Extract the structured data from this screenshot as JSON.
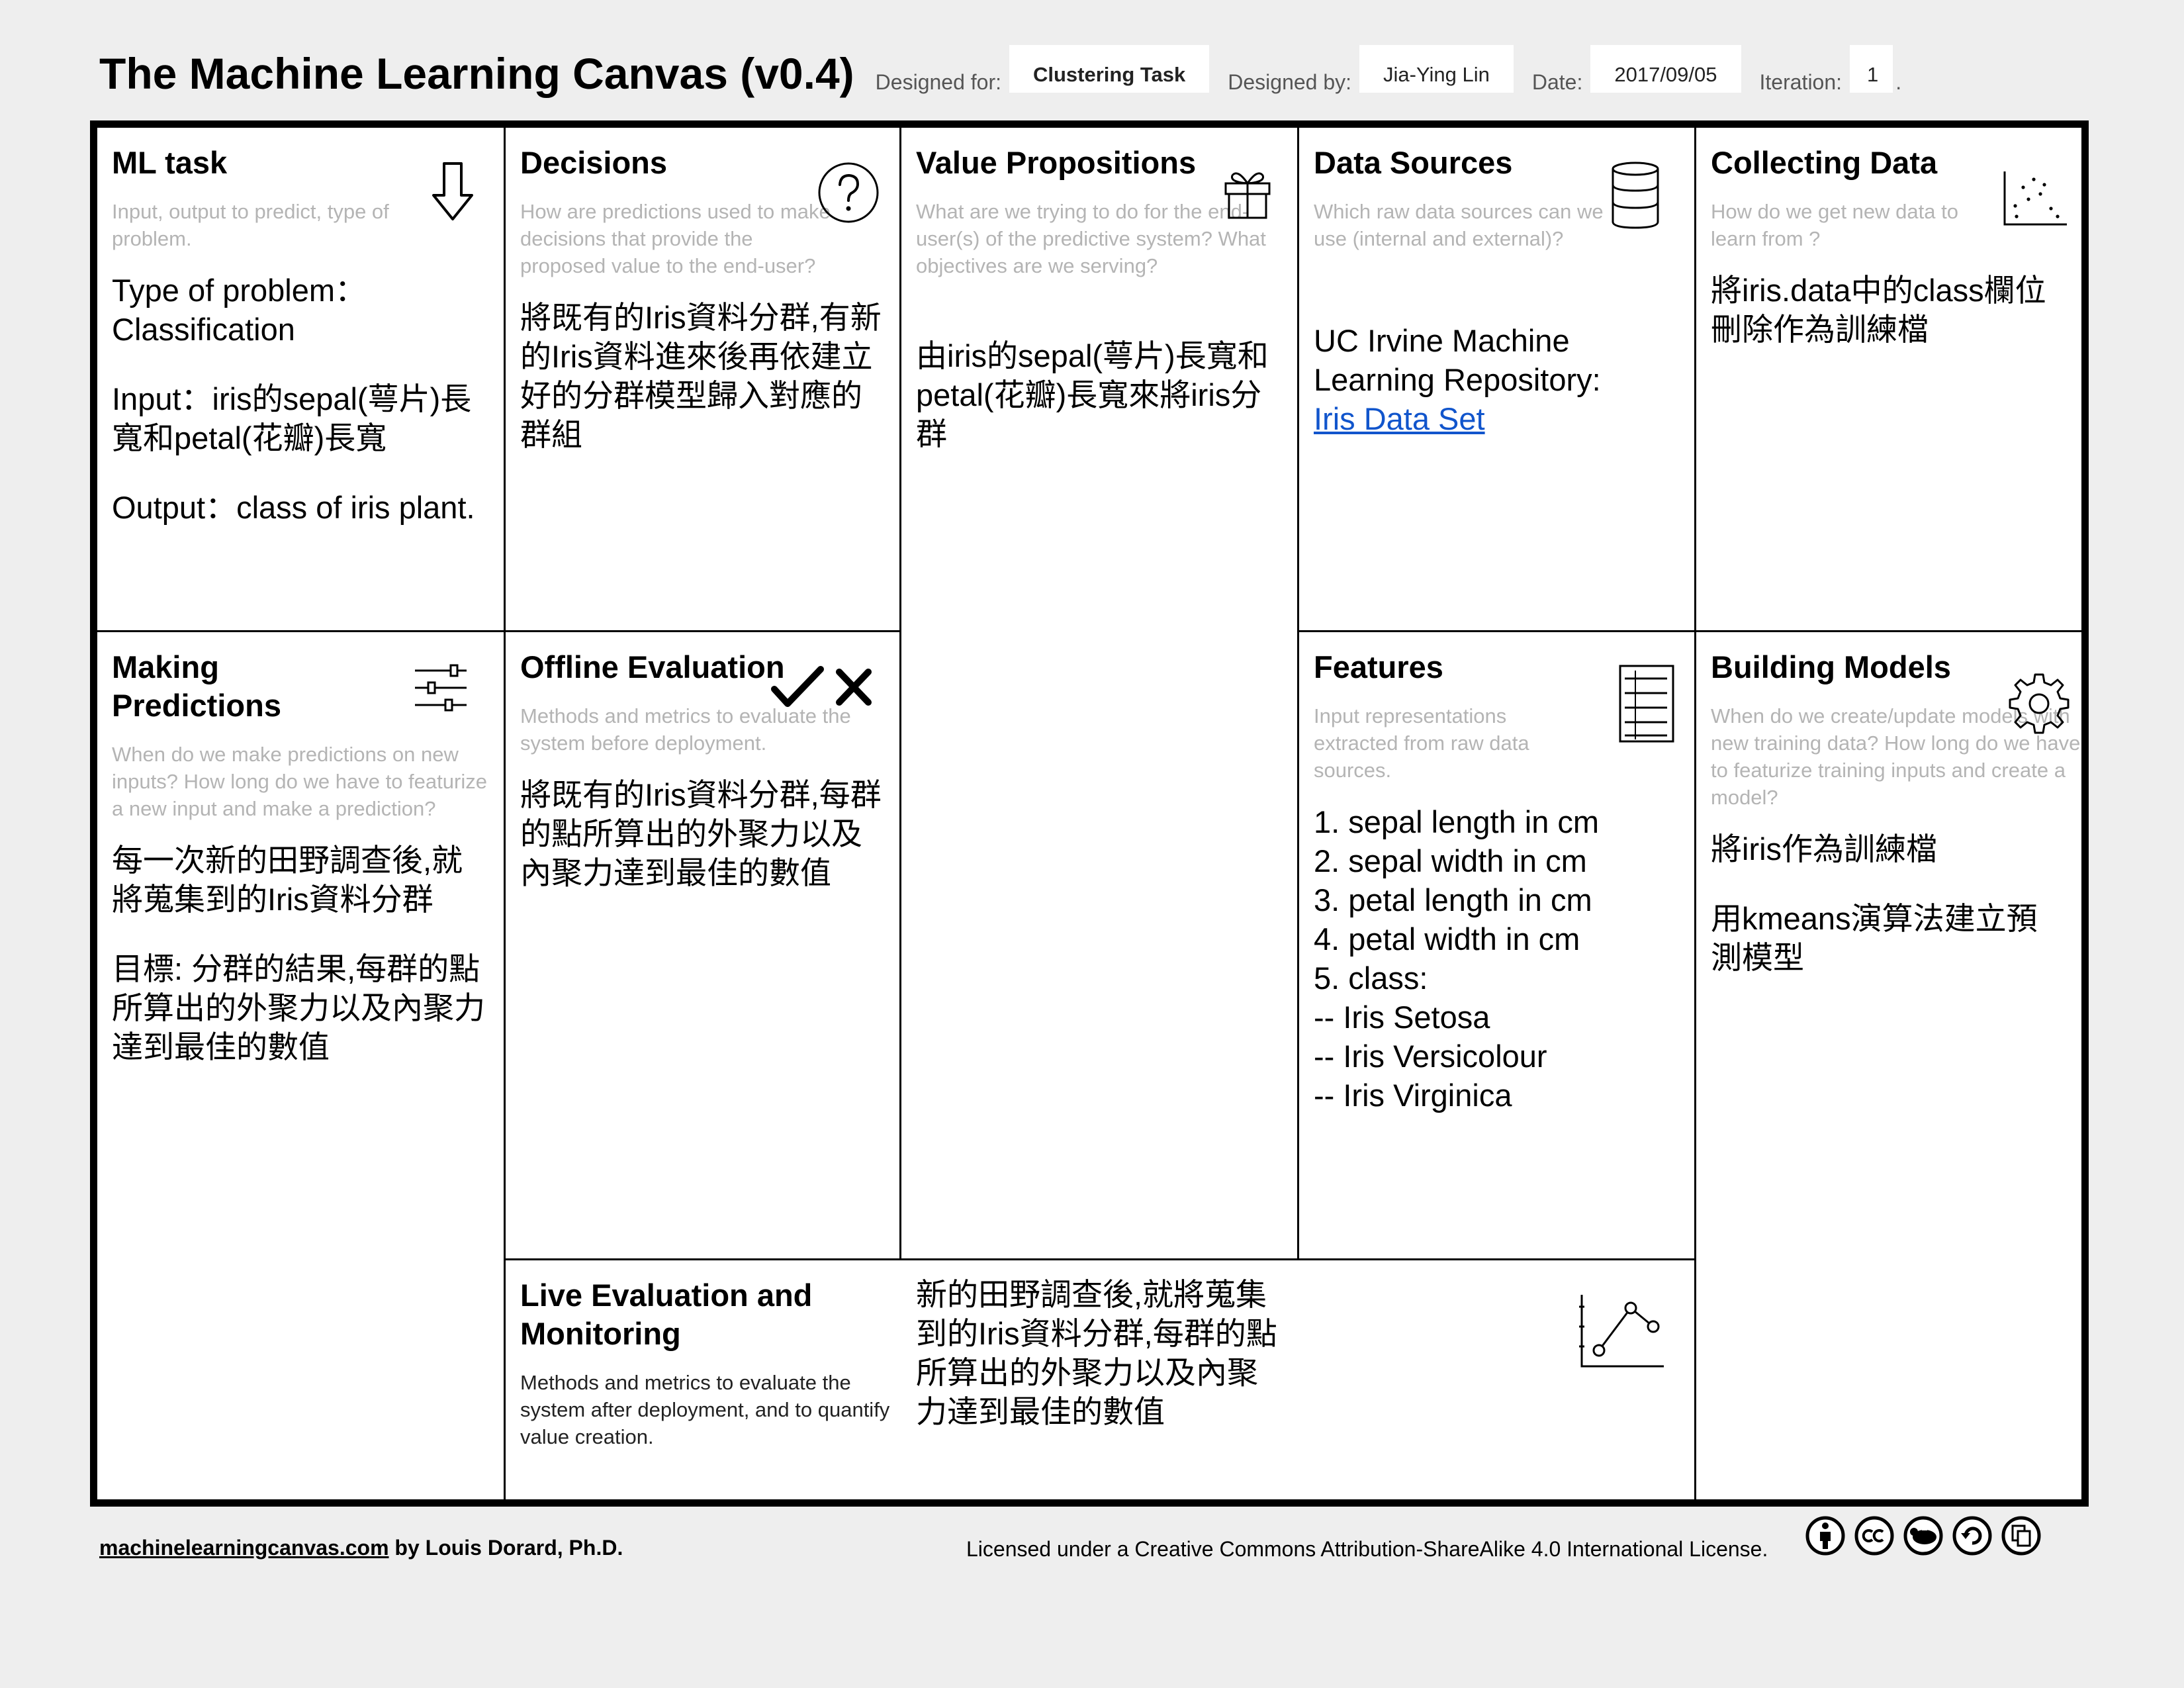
{
  "header": {
    "title": "The Machine Learning Canvas (v0.4)",
    "designed_for_label": "Designed for:",
    "designed_for": "Clustering Task",
    "designed_by_label": "Designed by:",
    "designed_by": "Jia-Ying Lin",
    "date_label": "Date:",
    "date": "2017/09/05",
    "iteration_label": "Iteration:",
    "iteration": "1",
    "iteration_suffix": "."
  },
  "cells": {
    "ml_task": {
      "title": "ML task",
      "hint": "Input, output to predict, type of problem.",
      "body": [
        "Type of problem： Classification",
        "Input：iris的sepal(萼片)長寬和petal(花瓣)長寬",
        "Output：class of iris plant."
      ],
      "icon": "arrow-down-icon"
    },
    "decisions": {
      "title": "Decisions",
      "hint": "How are predictions used to make decisions that provide the proposed value to the end-user?",
      "body": [
        "將既有的Iris資料分群,有新的Iris資料進來後再依建立好的分群模型歸入對應的群組"
      ],
      "icon": "question-icon"
    },
    "value_propositions": {
      "title": "Value Propositions",
      "hint": "What are we trying to do for the end-user(s) of the predictive system? What objectives are we serving?",
      "body": [
        "由iris的sepal(萼片)長寬和petal(花瓣)長寬來將iris分群"
      ],
      "icon": "gift-icon"
    },
    "data_sources": {
      "title": "Data Sources",
      "hint": "Which raw data sources can we use (internal and external)?",
      "body_text": "UC Irvine Machine Learning Repository:",
      "link": "Iris Data Set",
      "icon": "database-icon"
    },
    "collecting_data": {
      "title": "Collecting Data",
      "hint": "How do we get new data to learn from ?",
      "body": [
        "將iris.data中的class欄位刪除作為訓練檔"
      ],
      "icon": "scatter-plot-icon"
    },
    "making_predictions": {
      "title": "Making Predictions",
      "hint": "When do we make predictions on new inputs? How long do we have to featurize a new input and make a prediction?",
      "body": [
        "每一次新的田野調查後,就將蒐集到的Iris資料分群",
        "目標: 分群的結果,每群的點所算出的外聚力以及內聚力達到最佳的數值"
      ],
      "icon": "sliders-icon"
    },
    "offline_evaluation": {
      "title": "Offline Evaluation",
      "hint": "Methods and metrics to evaluate the system before deployment.",
      "body": [
        "將既有的Iris資料分群,每群的點所算出的外聚力以及內聚力達到最佳的數值"
      ],
      "icon": "check-cross-icon"
    },
    "features": {
      "title": "Features",
      "hint": "Input representations extracted from raw data sources.",
      "items": [
        "1. sepal length in cm",
        "2. sepal width in cm",
        "3. petal length in cm",
        "4. petal width in cm",
        "5. class:",
        "-- Iris Setosa",
        "-- Iris Versicolour",
        "-- Iris Virginica"
      ],
      "icon": "document-list-icon"
    },
    "building_models": {
      "title": "Building Models",
      "hint": "When do we create/update models with new training data? How long do we have to featurize training inputs and create a model?",
      "body": [
        "將iris作為訓練檔",
        "用kmeans演算法建立預測模型"
      ],
      "icon": "gear-icon"
    },
    "live_evaluation": {
      "title": "Live Evaluation and Monitoring",
      "hint": "Methods and metrics to evaluate the system after deployment, and to quantify value creation.",
      "body": [
        "新的田野調查後,就將蒐集到的Iris資料分群,每群的點所算出的外聚力以及內聚力達到最佳的數值"
      ],
      "icon": "line-chart-icon"
    }
  },
  "footer": {
    "site": "machinelearningcanvas.com",
    "author": " by Louis Dorard, Ph.D.",
    "license": "Licensed under a Creative Commons Attribution-ShareAlike 4.0 International License.",
    "license_icons": [
      "attribution-icon",
      "cc-icon",
      "nc-icon",
      "sharealike-icon",
      "copy-icon"
    ]
  }
}
